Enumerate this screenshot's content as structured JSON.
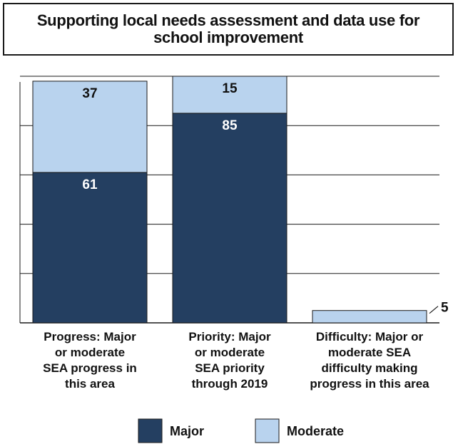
{
  "chart_data": {
    "type": "bar",
    "stacked": true,
    "title": "Supporting local needs assessment and data use for school improvement",
    "categories": [
      "Progress: Major or moderate SEA progress in this area",
      "Priority: Major or moderate SEA priority through 2019",
      "Difficulty: Major or moderate SEA difficulty making progress in this area"
    ],
    "category_lines": [
      [
        "Progress: Major",
        "or moderate",
        "SEA progress in",
        "this area"
      ],
      [
        "Priority: Major",
        "or moderate",
        "SEA priority",
        "through 2019"
      ],
      [
        "Difficulty: Major or",
        "moderate SEA",
        "difficulty making",
        "progress in this area"
      ]
    ],
    "series": [
      {
        "name": "Major",
        "color": "#243f61",
        "label_color": "#ffffff",
        "values": [
          61,
          85,
          null
        ]
      },
      {
        "name": "Moderate",
        "color": "#b9d3ee",
        "label_color": "#111111",
        "values": [
          37,
          15,
          5
        ]
      }
    ],
    "ylim": [
      0,
      100
    ],
    "gridlines": [
      20,
      40,
      60,
      80,
      100
    ],
    "grid": true,
    "legend_placement": "bottom",
    "xlabel": "",
    "ylabel": ""
  }
}
